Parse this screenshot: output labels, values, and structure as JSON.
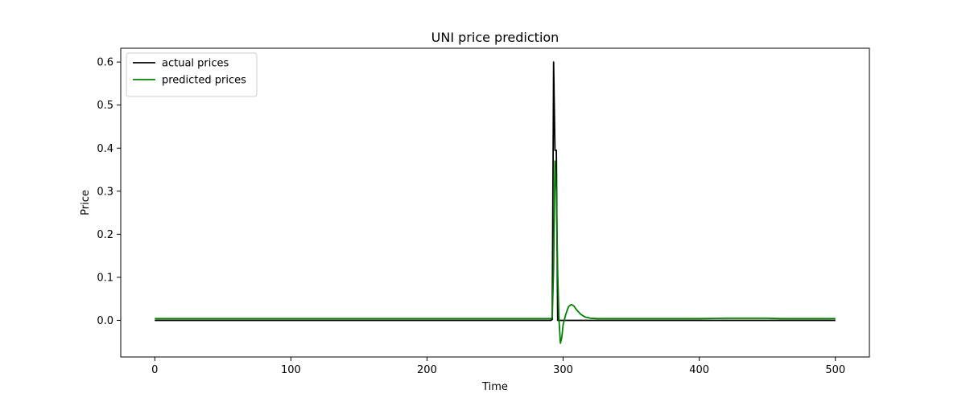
{
  "chart_data": {
    "type": "line",
    "title": "UNI price prediction",
    "xlabel": "Time",
    "ylabel": "Price",
    "xlim": [
      -25,
      525
    ],
    "ylim": [
      -0.085,
      0.632
    ],
    "xticks": [
      0,
      100,
      200,
      300,
      400,
      500
    ],
    "yticks": [
      0.0,
      0.1,
      0.2,
      0.3,
      0.4,
      0.5,
      0.6
    ],
    "ytick_labels": [
      "0.0",
      "0.1",
      "0.2",
      "0.3",
      "0.4",
      "0.5",
      "0.6"
    ],
    "xtick_labels": [
      "0",
      "100",
      "200",
      "300",
      "400",
      "500"
    ],
    "legend_position": "top-left",
    "grid": false,
    "series": [
      {
        "name": "actual prices",
        "color": "#000000",
        "points": [
          [
            0,
            0.0
          ],
          [
            291,
            0.0
          ],
          [
            292,
            0.002
          ],
          [
            293,
            0.6
          ],
          [
            294,
            0.395
          ],
          [
            295,
            0.395
          ],
          [
            296,
            0.0
          ],
          [
            297,
            0.0
          ],
          [
            500,
            0.0
          ]
        ]
      },
      {
        "name": "predicted prices",
        "color": "#008000",
        "points": [
          [
            0,
            0.004
          ],
          [
            290,
            0.004
          ],
          [
            291,
            0.004
          ],
          [
            292,
            0.006
          ],
          [
            293,
            0.12
          ],
          [
            294,
            0.37
          ],
          [
            295,
            0.3
          ],
          [
            296,
            0.11
          ],
          [
            297,
            0.0
          ],
          [
            298,
            -0.053
          ],
          [
            299,
            -0.04
          ],
          [
            300,
            -0.01
          ],
          [
            302,
            0.015
          ],
          [
            304,
            0.032
          ],
          [
            306,
            0.037
          ],
          [
            308,
            0.033
          ],
          [
            310,
            0.024
          ],
          [
            313,
            0.014
          ],
          [
            316,
            0.008
          ],
          [
            320,
            0.005
          ],
          [
            325,
            0.004
          ],
          [
            360,
            0.004
          ],
          [
            400,
            0.004
          ],
          [
            420,
            0.005
          ],
          [
            450,
            0.005
          ],
          [
            460,
            0.004
          ],
          [
            500,
            0.004
          ]
        ]
      }
    ]
  }
}
